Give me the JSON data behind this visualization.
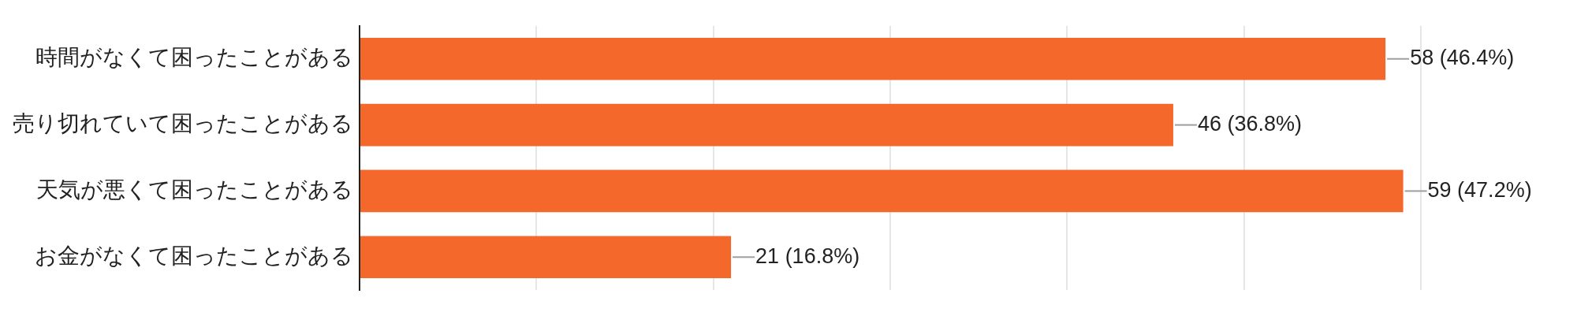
{
  "chart_data": {
    "type": "bar",
    "orientation": "horizontal",
    "categories": [
      "時間がなくて困ったことがある",
      "売り切れていて困ったことがある",
      "天気が悪くて困ったことがある",
      "お金がなくて困ったことがある"
    ],
    "values": [
      58,
      46,
      59,
      21
    ],
    "value_labels": [
      "58 (46.4%)",
      "46 (36.8%)",
      "59 (47.2%)",
      "21 (16.8%)"
    ],
    "color": "#f4682c",
    "xlim": [
      0,
      60
    ],
    "xticks": [
      {
        "value": 0,
        "label": null
      },
      {
        "value": 10,
        "label": null
      },
      {
        "value": 20,
        "label": null
      },
      {
        "value": 30,
        "label": null
      },
      {
        "value": 40,
        "label": null
      },
      {
        "value": 50,
        "label": null
      },
      {
        "value": 60,
        "label": null
      }
    ],
    "grid": "x",
    "tick_labels": "y",
    "legend": false
  }
}
